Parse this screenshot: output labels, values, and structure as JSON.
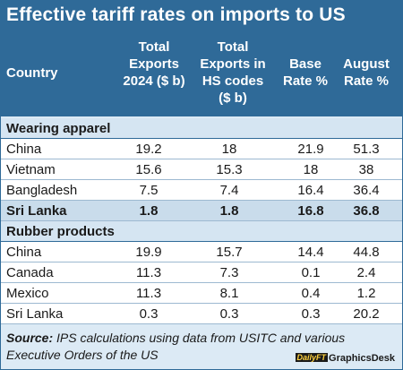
{
  "title": "Effective tariff rates on imports to US",
  "columns": {
    "country": "Country",
    "total_exports": [
      "Total",
      "Exports",
      "2024 ($ b)"
    ],
    "hs_exports": [
      "Total",
      "Exports in",
      "HS codes",
      "($ b)"
    ],
    "base_rate": [
      "Base",
      "Rate %"
    ],
    "august_rate": [
      "August",
      "Rate %"
    ]
  },
  "sections": [
    {
      "name": "Wearing apparel",
      "rows": [
        {
          "country": "China",
          "total_exports": "19.2",
          "hs_exports": "18",
          "base_rate": "21.9",
          "august_rate": "51.3"
        },
        {
          "country": "Vietnam",
          "total_exports": "15.6",
          "hs_exports": "15.3",
          "base_rate": "18",
          "august_rate": "38"
        },
        {
          "country": "Bangladesh",
          "total_exports": "7.5",
          "hs_exports": "7.4",
          "base_rate": "16.4",
          "august_rate": "36.4"
        },
        {
          "country": "Sri Lanka",
          "total_exports": "1.8",
          "hs_exports": "1.8",
          "base_rate": "16.8",
          "august_rate": "36.8",
          "highlight": true
        }
      ]
    },
    {
      "name": "Rubber products",
      "rows": [
        {
          "country": "China",
          "total_exports": "19.9",
          "hs_exports": "15.7",
          "base_rate": "14.4",
          "august_rate": "44.8"
        },
        {
          "country": "Canada",
          "total_exports": "11.3",
          "hs_exports": "7.3",
          "base_rate": "0.1",
          "august_rate": "2.4"
        },
        {
          "country": "Mexico",
          "total_exports": "11.3",
          "hs_exports": "8.1",
          "base_rate": "0.4",
          "august_rate": "1.2"
        },
        {
          "country": "Sri Lanka",
          "total_exports": "0.3",
          "hs_exports": "0.3",
          "base_rate": "0.3",
          "august_rate": "20.2"
        }
      ]
    }
  ],
  "source": {
    "label": "Source:",
    "text": "IPS calculations using data from USITC and various Executive Orders of the US"
  },
  "credit": {
    "logo": "DailyFT",
    "text": "GraphicsDesk"
  },
  "colors": {
    "header": "#2f6a98",
    "section_bg": "#d5e5f2",
    "highlight_row": "#c9dceb"
  },
  "chart_data": {
    "type": "table",
    "title": "Effective tariff rates on imports to US",
    "columns": [
      "Country",
      "Total Exports 2024 ($ b)",
      "Total Exports in HS codes ($ b)",
      "Base Rate %",
      "August Rate %"
    ],
    "groups": [
      {
        "name": "Wearing apparel",
        "rows": [
          [
            "China",
            19.2,
            18,
            21.9,
            51.3
          ],
          [
            "Vietnam",
            15.6,
            15.3,
            18,
            38
          ],
          [
            "Bangladesh",
            7.5,
            7.4,
            16.4,
            36.4
          ],
          [
            "Sri Lanka",
            1.8,
            1.8,
            16.8,
            36.8
          ]
        ]
      },
      {
        "name": "Rubber products",
        "rows": [
          [
            "China",
            19.9,
            15.7,
            14.4,
            44.8
          ],
          [
            "Canada",
            11.3,
            7.3,
            0.1,
            2.4
          ],
          [
            "Mexico",
            11.3,
            8.1,
            0.4,
            1.2
          ],
          [
            "Sri Lanka",
            0.3,
            0.3,
            0.3,
            20.2
          ]
        ]
      }
    ]
  }
}
